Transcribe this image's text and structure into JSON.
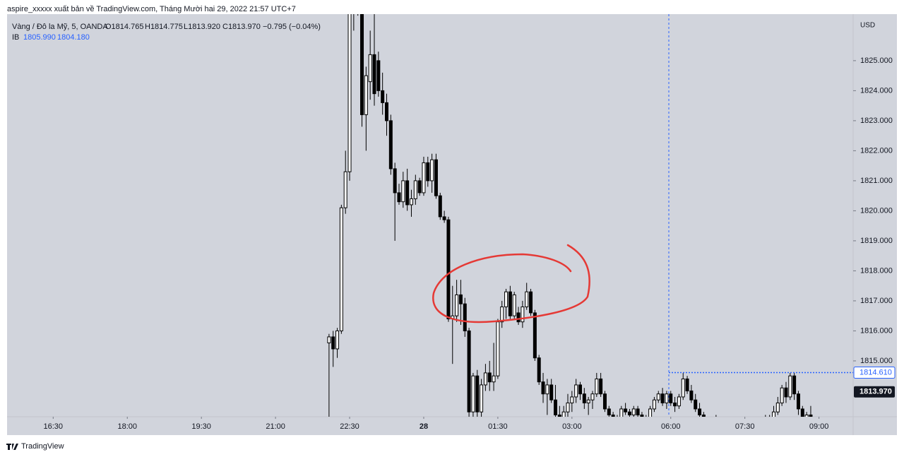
{
  "header": "aspire_xxxxx xuất bản về TradingView.com, Tháng Mười hai 29, 2022 21:57 UTC+7",
  "footer": "TradingView",
  "chart_data": {
    "type": "candlestick",
    "title": "Vàng / Đô la Mỹ, 5, OANDA",
    "ohlc_labels": [
      "O1814.765",
      "H1814.775",
      "L1813.920",
      "C1813.970"
    ],
    "change_label": "−0.795 (−0.04%)",
    "indicator": {
      "name": "IB",
      "labels": [
        "1805.990",
        "1804.180"
      ]
    },
    "y_unit": "USD",
    "open": [
      1815.6,
      1815.8,
      1815.4,
      1816.0,
      1820.1,
      1821.3,
      1826.8,
      1827.5,
      1826.9,
      1823.2,
      1824.3,
      1825.2,
      1825.0,
      1824.0,
      1823.6,
      1823.0,
      1821.4,
      1820.6,
      1820.3,
      1821.0,
      1820.2,
      1820.4,
      1821.0,
      1820.6,
      1821.6,
      1821.0,
      1821.7,
      1820.5,
      1819.8,
      1819.7,
      1816.4,
      1816.5,
      1817.2,
      1816.9,
      1816.0,
      1813.3,
      1814.5,
      1813.3,
      1814.2,
      1814.6,
      1814.3,
      1814.5,
      1816.3,
      1816.8,
      1817.3,
      1816.5,
      1816.6,
      1816.3,
      1816.8,
      1817.3,
      1816.6,
      1815.1,
      1814.3,
      1813.9,
      1814.2,
      1813.7,
      1813.2,
      1813.1,
      1813.3,
      1813.6,
      1813.8,
      1814.2,
      1813.9,
      1813.6,
      1813.7,
      1813.9,
      1814.4,
      1813.9,
      1813.4,
      1813.2,
      1813.0,
      1813.1,
      1813.4,
      1813.3,
      1813.2,
      1813.4,
      1813.2,
      1813.0,
      1813.1,
      1813.4,
      1813.7,
      1813.9,
      1813.6,
      1813.9,
      1813.6,
      1813.5,
      1813.8,
      1814.4,
      1814.0,
      1813.7,
      1813.4,
      1813.2,
      1812.9,
      1812.8,
      1812.7,
      1812.8,
      1812.6,
      1812.7,
      1812.6,
      1812.5,
      1812.7,
      1812.6,
      1812.7,
      1812.9,
      1812.7,
      1812.8,
      1812.9,
      1813.0,
      1813.1,
      1813.3,
      1813.6,
      1814.1,
      1813.8,
      1814.5,
      1813.9,
      1813.4,
      1813.1,
      1813.2
    ],
    "high": [
      1815.9,
      1816.0,
      1816.1,
      1820.2,
      1822.0,
      1827.0,
      1828.0,
      1828.0,
      1827.0,
      1824.8,
      1826.0,
      1826.8,
      1825.3,
      1824.6,
      1823.9,
      1823.2,
      1821.6,
      1820.9,
      1821.3,
      1821.4,
      1820.7,
      1821.2,
      1821.1,
      1821.8,
      1821.8,
      1821.9,
      1821.9,
      1820.6,
      1820.0,
      1819.8,
      1817.5,
      1817.7,
      1817.7,
      1817.1,
      1816.1,
      1814.6,
      1814.7,
      1814.4,
      1814.9,
      1815.0,
      1815.6,
      1816.4,
      1817.0,
      1817.4,
      1817.5,
      1817.3,
      1816.8,
      1817.0,
      1817.6,
      1817.4,
      1816.7,
      1815.2,
      1814.6,
      1814.4,
      1814.4,
      1814.2,
      1813.5,
      1813.5,
      1813.9,
      1814.0,
      1814.4,
      1814.3,
      1814.1,
      1813.8,
      1814.0,
      1814.6,
      1814.6,
      1814.0,
      1813.5,
      1813.3,
      1813.2,
      1813.5,
      1813.6,
      1813.4,
      1813.5,
      1813.5,
      1813.3,
      1813.2,
      1813.5,
      1813.8,
      1814.0,
      1814.1,
      1814.0,
      1814.0,
      1813.8,
      1813.9,
      1814.6,
      1814.5,
      1814.2,
      1813.9,
      1813.6,
      1813.3,
      1813.0,
      1812.9,
      1813.2,
      1813.0,
      1812.8,
      1812.9,
      1812.7,
      1812.8,
      1812.9,
      1812.8,
      1813.0,
      1813.0,
      1812.9,
      1813.0,
      1813.2,
      1813.2,
      1813.5,
      1813.8,
      1814.2,
      1814.3,
      1814.6,
      1814.6,
      1814.0,
      1813.5,
      1813.3,
      1813.5
    ],
    "low": [
      1813.0,
      1814.8,
      1815.1,
      1815.9,
      1819.9,
      1821.0,
      1826.0,
      1826.5,
      1822.8,
      1822.0,
      1823.7,
      1823.5,
      1823.8,
      1823.2,
      1822.5,
      1821.2,
      1819.0,
      1820.2,
      1820.1,
      1820.0,
      1819.8,
      1820.2,
      1820.5,
      1820.5,
      1820.8,
      1820.6,
      1820.4,
      1819.7,
      1819.6,
      1816.3,
      1814.9,
      1816.3,
      1816.2,
      1815.8,
      1813.0,
      1813.0,
      1813.0,
      1813.1,
      1814.0,
      1814.0,
      1814.0,
      1814.4,
      1816.1,
      1816.4,
      1816.4,
      1816.4,
      1816.2,
      1816.1,
      1816.7,
      1816.5,
      1815.0,
      1814.2,
      1813.6,
      1813.2,
      1813.6,
      1812.9,
      1812.8,
      1812.9,
      1813.1,
      1813.3,
      1813.6,
      1813.7,
      1813.4,
      1813.2,
      1813.4,
      1813.8,
      1813.8,
      1813.3,
      1813.0,
      1812.9,
      1812.8,
      1813.0,
      1813.2,
      1813.1,
      1813.0,
      1813.1,
      1812.9,
      1812.8,
      1813.0,
      1813.3,
      1813.6,
      1813.5,
      1813.4,
      1813.5,
      1813.3,
      1813.4,
      1813.7,
      1813.9,
      1813.6,
      1813.3,
      1813.0,
      1812.8,
      1812.6,
      1812.5,
      1812.6,
      1812.5,
      1812.4,
      1812.5,
      1812.3,
      1812.4,
      1812.5,
      1812.4,
      1812.6,
      1812.6,
      1812.5,
      1812.6,
      1812.8,
      1812.8,
      1813.0,
      1813.2,
      1813.5,
      1813.6,
      1813.7,
      1813.7,
      1813.2,
      1813.0,
      1812.9,
      1813.0
    ],
    "close": [
      1815.8,
      1815.4,
      1816.0,
      1820.1,
      1821.3,
      1826.8,
      1827.5,
      1827.0,
      1823.2,
      1824.5,
      1825.2,
      1823.9,
      1824.0,
      1823.6,
      1823.0,
      1821.4,
      1820.6,
      1820.3,
      1821.0,
      1820.2,
      1820.4,
      1821.0,
      1820.6,
      1821.6,
      1821.0,
      1821.7,
      1820.5,
      1819.8,
      1819.7,
      1816.4,
      1816.5,
      1817.2,
      1816.9,
      1816.0,
      1813.3,
      1814.5,
      1813.3,
      1814.2,
      1814.6,
      1814.3,
      1814.5,
      1816.3,
      1816.8,
      1817.3,
      1816.5,
      1817.2,
      1816.3,
      1816.8,
      1817.3,
      1816.6,
      1815.1,
      1814.3,
      1813.9,
      1814.2,
      1813.7,
      1813.2,
      1813.1,
      1813.3,
      1813.6,
      1813.8,
      1814.2,
      1813.9,
      1813.6,
      1813.7,
      1813.9,
      1814.4,
      1813.9,
      1813.4,
      1813.2,
      1813.0,
      1813.1,
      1813.4,
      1813.3,
      1813.2,
      1813.4,
      1813.2,
      1813.0,
      1813.1,
      1813.4,
      1813.7,
      1813.9,
      1813.6,
      1813.9,
      1813.6,
      1813.5,
      1813.8,
      1814.4,
      1814.0,
      1813.7,
      1813.4,
      1813.2,
      1812.9,
      1812.8,
      1812.7,
      1812.8,
      1812.6,
      1812.7,
      1812.6,
      1812.5,
      1812.7,
      1812.6,
      1812.7,
      1812.9,
      1812.7,
      1812.8,
      1812.9,
      1813.0,
      1813.1,
      1813.3,
      1813.6,
      1814.1,
      1813.8,
      1814.5,
      1813.9,
      1813.4,
      1813.1,
      1813.2,
      1813.1
    ],
    "xlim": [
      -78.2,
      127.3
    ],
    "xticks": [
      {
        "value": -67,
        "label": "16:30"
      },
      {
        "value": -49,
        "label": "18:00"
      },
      {
        "value": -31,
        "label": "19:30"
      },
      {
        "value": -13,
        "label": "21:00"
      },
      {
        "value": 5,
        "label": "22:30"
      },
      {
        "value": 23,
        "label": "28"
      },
      {
        "value": 41,
        "label": "01:30"
      },
      {
        "value": 59,
        "label": "03:00"
      },
      {
        "value": 83,
        "label": "06:00"
      },
      {
        "value": 101,
        "label": "07:30"
      },
      {
        "value": 119,
        "label": "09:00"
      }
    ],
    "ylim": [
      1813.14,
      1826.55
    ],
    "yticks": [
      {
        "value": 1815,
        "label": "1815.000"
      },
      {
        "value": 1816,
        "label": "1816.000"
      },
      {
        "value": 1817,
        "label": "1817.000"
      },
      {
        "value": 1818,
        "label": "1818.000"
      },
      {
        "value": 1819,
        "label": "1819.000"
      },
      {
        "value": 1820,
        "label": "1820.000"
      },
      {
        "value": 1821,
        "label": "1821.000"
      },
      {
        "value": 1822,
        "label": "1822.000"
      },
      {
        "value": 1823,
        "label": "1823.000"
      },
      {
        "value": 1824,
        "label": "1824.000"
      },
      {
        "value": 1825,
        "label": "1825.000"
      }
    ],
    "price_line": {
      "value": 1814.61,
      "label": "1814.610"
    },
    "last_price": {
      "value": 1813.97,
      "label": "1813.970"
    },
    "up_color": "#ffffff",
    "down_color": "#000000"
  }
}
